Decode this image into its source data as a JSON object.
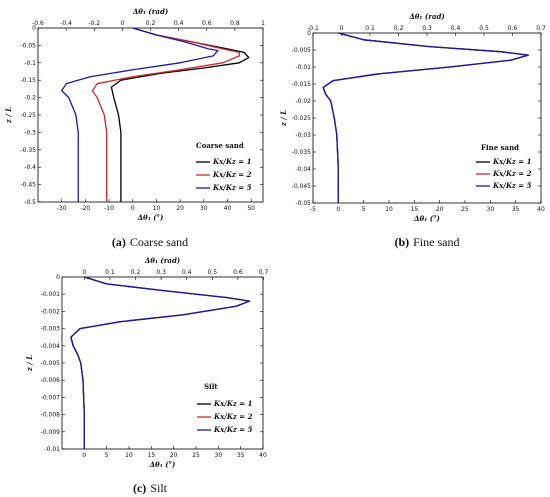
{
  "chart_data": [
    {
      "type": "line",
      "title": "Coarse sand",
      "caption_label": "(a)",
      "caption_text": "Coarse sand",
      "xlabel": "Δθ₁ (°)",
      "x2label": "Δθ₁ (rad)",
      "ylabel": "z / L",
      "xlim": [
        -40,
        55
      ],
      "x2lim": [
        -0.6,
        1.0
      ],
      "ylim": [
        -0.5,
        0
      ],
      "x_ticks": [
        "-30",
        "-20",
        "-10",
        "0",
        "10",
        "20",
        "30",
        "40",
        "50"
      ],
      "x2_ticks": [
        "-0.6",
        "-0.4",
        "-0.2",
        "0",
        "0.2",
        "0.4",
        "0.6",
        "0.8",
        "1"
      ],
      "y_ticks": [
        "0",
        "-0.05",
        "-0.1",
        "-0.15",
        "-0.2",
        "-0.25",
        "-0.3",
        "-0.35",
        "-0.4",
        "-0.45",
        "-0.5"
      ],
      "grid": false,
      "legend_position": "right",
      "series": [
        {
          "name": "Kx/Kz = 1",
          "color": "#000000",
          "points": [
            [
              0,
              0
            ],
            [
              10,
              -0.02
            ],
            [
              25,
              -0.04
            ],
            [
              40,
              -0.06
            ],
            [
              47,
              -0.07
            ],
            [
              49,
              -0.085
            ],
            [
              45,
              -0.1
            ],
            [
              30,
              -0.115
            ],
            [
              12,
              -0.13
            ],
            [
              -5,
              -0.15
            ],
            [
              -9,
              -0.17
            ],
            [
              -8,
              -0.2
            ],
            [
              -6,
              -0.25
            ],
            [
              -5,
              -0.3
            ],
            [
              -5,
              -0.4
            ],
            [
              -5,
              -0.5
            ]
          ]
        },
        {
          "name": "Kx/Kz = 2",
          "color": "#cc2a2a",
          "points": [
            [
              0,
              0
            ],
            [
              10,
              -0.02
            ],
            [
              25,
              -0.04
            ],
            [
              38,
              -0.06
            ],
            [
              45,
              -0.07
            ],
            [
              45,
              -0.08
            ],
            [
              38,
              -0.1
            ],
            [
              20,
              -0.12
            ],
            [
              0,
              -0.14
            ],
            [
              -15,
              -0.16
            ],
            [
              -17,
              -0.18
            ],
            [
              -15,
              -0.2
            ],
            [
              -12,
              -0.25
            ],
            [
              -11,
              -0.3
            ],
            [
              -11,
              -0.4
            ],
            [
              -11,
              -0.5
            ]
          ]
        },
        {
          "name": "Kx/Kz = 5",
          "color": "#1a1aaa",
          "points": [
            [
              0,
              0
            ],
            [
              10,
              -0.02
            ],
            [
              22,
              -0.04
            ],
            [
              32,
              -0.06
            ],
            [
              36,
              -0.065
            ],
            [
              34,
              -0.08
            ],
            [
              20,
              -0.1
            ],
            [
              0,
              -0.12
            ],
            [
              -18,
              -0.14
            ],
            [
              -28,
              -0.16
            ],
            [
              -30,
              -0.18
            ],
            [
              -27,
              -0.2
            ],
            [
              -24,
              -0.25
            ],
            [
              -23,
              -0.3
            ],
            [
              -23,
              -0.4
            ],
            [
              -23,
              -0.5
            ]
          ]
        }
      ]
    },
    {
      "type": "line",
      "title": "Fine sand",
      "caption_label": "(b)",
      "caption_text": "Fine sand",
      "xlabel": "Δθ₁ (°)",
      "x2label": "Δθ₁ (rad)",
      "ylabel": "z / L",
      "xlim": [
        -5,
        40
      ],
      "x2lim": [
        -0.1,
        0.7
      ],
      "ylim": [
        -0.05,
        0
      ],
      "x_ticks": [
        "-5",
        "0",
        "5",
        "10",
        "15",
        "20",
        "25",
        "30",
        "35",
        "40"
      ],
      "x2_ticks": [
        "-0.1",
        "0",
        "0.1",
        "0.2",
        "0.3",
        "0.4",
        "0.5",
        "0.6",
        "0.7"
      ],
      "y_ticks": [
        "0",
        "-0.005",
        "-0.01",
        "-0.015",
        "-0.02",
        "-0.025",
        "-0.03",
        "-0.035",
        "-0.04",
        "-0.045",
        "-0.05"
      ],
      "grid": false,
      "legend_position": "right",
      "series": [
        {
          "name": "Kx/Kz = 1",
          "color": "#000000",
          "points": [
            [
              0,
              0
            ],
            [
              5,
              -0.002
            ],
            [
              18,
              -0.004
            ],
            [
              32,
              -0.0055
            ],
            [
              37.5,
              -0.0065
            ],
            [
              34,
              -0.008
            ],
            [
              22,
              -0.01
            ],
            [
              8,
              -0.012
            ],
            [
              -1,
              -0.014
            ],
            [
              -3,
              -0.016
            ],
            [
              -2.5,
              -0.018
            ],
            [
              -1.5,
              -0.02
            ],
            [
              -0.8,
              -0.025
            ],
            [
              -0.3,
              -0.03
            ],
            [
              0,
              -0.04
            ],
            [
              0,
              -0.05
            ]
          ]
        },
        {
          "name": "Kx/Kz = 2",
          "color": "#cc2a2a",
          "points": [
            [
              0,
              0
            ],
            [
              5,
              -0.002
            ],
            [
              18,
              -0.004
            ],
            [
              32,
              -0.0055
            ],
            [
              37.5,
              -0.0065
            ],
            [
              34,
              -0.008
            ],
            [
              22,
              -0.01
            ],
            [
              8,
              -0.012
            ],
            [
              -1,
              -0.014
            ],
            [
              -3,
              -0.016
            ],
            [
              -2.5,
              -0.018
            ],
            [
              -1.5,
              -0.02
            ],
            [
              -0.8,
              -0.025
            ],
            [
              -0.3,
              -0.03
            ],
            [
              0,
              -0.04
            ],
            [
              0,
              -0.05
            ]
          ]
        },
        {
          "name": "Kx/Kz = 5",
          "color": "#1a1aaa",
          "points": [
            [
              0,
              0
            ],
            [
              5,
              -0.002
            ],
            [
              18,
              -0.004
            ],
            [
              32,
              -0.0055
            ],
            [
              37.5,
              -0.0065
            ],
            [
              34,
              -0.008
            ],
            [
              22,
              -0.01
            ],
            [
              8,
              -0.012
            ],
            [
              -1,
              -0.014
            ],
            [
              -3,
              -0.016
            ],
            [
              -2.5,
              -0.018
            ],
            [
              -1.5,
              -0.02
            ],
            [
              -0.8,
              -0.025
            ],
            [
              -0.3,
              -0.03
            ],
            [
              0,
              -0.04
            ],
            [
              0,
              -0.05
            ]
          ]
        }
      ]
    },
    {
      "type": "line",
      "title": "Silt",
      "caption_label": "(c)",
      "caption_text": "Silt",
      "xlabel": "Δθ₁ (°)",
      "x2label": "Δθ₁ (rad)",
      "ylabel": "z / L",
      "xlim": [
        -5,
        40
      ],
      "x2lim": [
        -0.0873,
        0.6981
      ],
      "ylim": [
        -0.01,
        0
      ],
      "x_ticks": [
        "0",
        "5",
        "10",
        "15",
        "20",
        "25",
        "30",
        "35",
        "40"
      ],
      "x2_ticks": [
        "0",
        "0.1",
        "0.2",
        "0.3",
        "0.4",
        "0.5",
        "0.6",
        "0.7"
      ],
      "y_ticks": [
        "0",
        "-0.001",
        "-0.002",
        "-0.003",
        "-0.004",
        "-0.005",
        "-0.006",
        "-0.007",
        "-0.008",
        "-0.009",
        "-0.01"
      ],
      "grid": false,
      "legend_position": "right",
      "series": [
        {
          "name": "Kx/Kz = 1",
          "color": "#000000",
          "points": [
            [
              0,
              0
            ],
            [
              5,
              -0.0004
            ],
            [
              18,
              -0.0008
            ],
            [
              32,
              -0.0012
            ],
            [
              37,
              -0.0014
            ],
            [
              34,
              -0.0017
            ],
            [
              22,
              -0.0022
            ],
            [
              8,
              -0.0026
            ],
            [
              -1,
              -0.003
            ],
            [
              -3,
              -0.0035
            ],
            [
              -2.5,
              -0.004
            ],
            [
              -1.5,
              -0.0045
            ],
            [
              -0.8,
              -0.005
            ],
            [
              -0.3,
              -0.006
            ],
            [
              0,
              -0.008
            ],
            [
              0,
              -0.01
            ]
          ]
        },
        {
          "name": "Kx/Kz = 2",
          "color": "#cc2a2a",
          "points": [
            [
              0,
              0
            ],
            [
              5,
              -0.0004
            ],
            [
              18,
              -0.0008
            ],
            [
              32,
              -0.0012
            ],
            [
              37,
              -0.0014
            ],
            [
              34,
              -0.0017
            ],
            [
              22,
              -0.0022
            ],
            [
              8,
              -0.0026
            ],
            [
              -1,
              -0.003
            ],
            [
              -3,
              -0.0035
            ],
            [
              -2.5,
              -0.004
            ],
            [
              -1.5,
              -0.0045
            ],
            [
              -0.8,
              -0.005
            ],
            [
              -0.3,
              -0.006
            ],
            [
              0,
              -0.008
            ],
            [
              0,
              -0.01
            ]
          ]
        },
        {
          "name": "Kx/Kz = 5",
          "color": "#1a1aaa",
          "points": [
            [
              0,
              0
            ],
            [
              5,
              -0.0004
            ],
            [
              18,
              -0.0008
            ],
            [
              32,
              -0.0012
            ],
            [
              37,
              -0.0014
            ],
            [
              34,
              -0.0017
            ],
            [
              22,
              -0.0022
            ],
            [
              8,
              -0.0026
            ],
            [
              -1,
              -0.003
            ],
            [
              -3,
              -0.0035
            ],
            [
              -2.5,
              -0.004
            ],
            [
              -1.5,
              -0.0045
            ],
            [
              -0.8,
              -0.005
            ],
            [
              -0.3,
              -0.006
            ],
            [
              0,
              -0.008
            ],
            [
              0,
              -0.01
            ]
          ]
        }
      ]
    }
  ]
}
